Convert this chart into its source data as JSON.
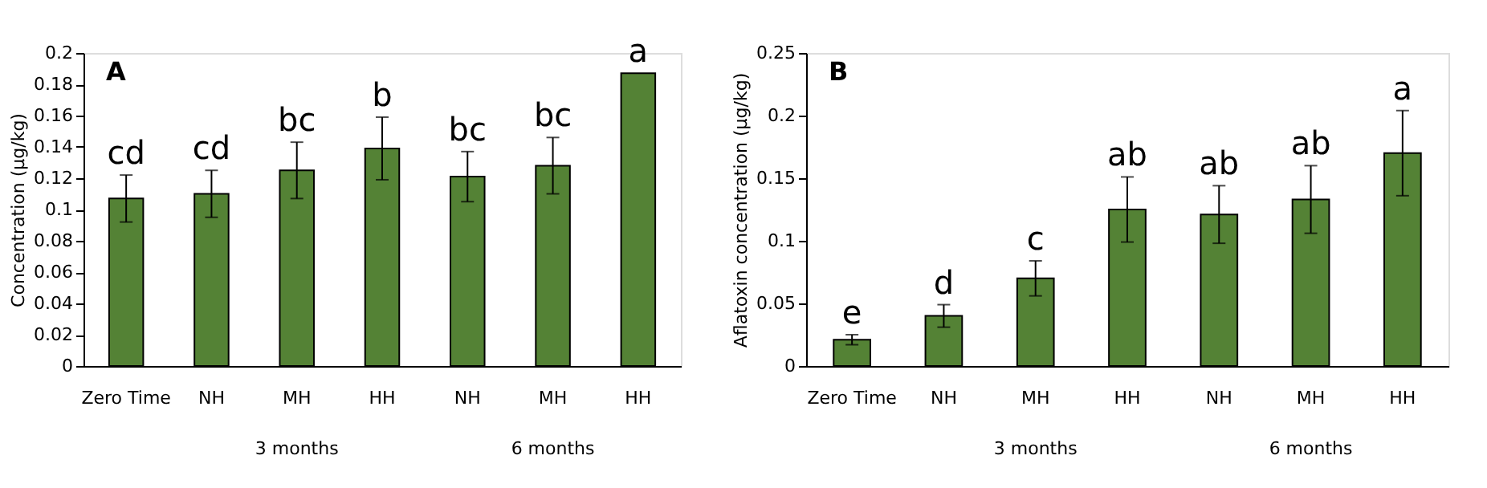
{
  "chart_data": [
    {
      "type": "bar",
      "title": "A",
      "ylabel": "Concentration (µg/kg)",
      "categories": [
        "Zero Time",
        "NH",
        "MH",
        "HH",
        "NH",
        "MH",
        "HH"
      ],
      "series": [
        {
          "color": "#548235",
          "values": [
            0.107,
            0.11,
            0.125,
            0.139,
            0.121,
            0.128,
            0.187
          ],
          "errors": [
            0.015,
            0.015,
            0.018,
            0.02,
            0.016,
            0.018,
            null
          ],
          "value_labels": [
            "cd",
            "cd",
            "bc",
            "b",
            "bc",
            "bc",
            "a"
          ]
        }
      ],
      "ylim": [
        0,
        0.2
      ],
      "yticks": [
        0,
        0.02,
        0.04,
        0.06,
        0.08,
        0.1,
        0.12,
        0.14,
        0.16,
        0.18,
        0.2
      ],
      "grid": false,
      "annotations": [
        "3 months",
        "6 months"
      ]
    },
    {
      "type": "bar",
      "title": "B",
      "ylabel": "Aflatoxin  concentration (µg/kg)",
      "categories": [
        "Zero Time",
        "NH",
        "MH",
        "HH",
        "NH",
        "MH",
        "HH"
      ],
      "series": [
        {
          "color": "#548235",
          "values": [
            0.021,
            0.04,
            0.07,
            0.125,
            0.121,
            0.133,
            0.17
          ],
          "errors": [
            0.004,
            0.009,
            0.014,
            0.026,
            0.023,
            0.027,
            0.034
          ],
          "value_labels": [
            "e",
            "d",
            "c",
            "ab",
            "ab",
            "ab",
            "a"
          ]
        }
      ],
      "ylim": [
        0,
        0.25
      ],
      "yticks": [
        0,
        0.05,
        0.1,
        0.15,
        0.2,
        0.25
      ],
      "grid": false,
      "annotations": [
        "3 months",
        "6 months"
      ]
    }
  ]
}
